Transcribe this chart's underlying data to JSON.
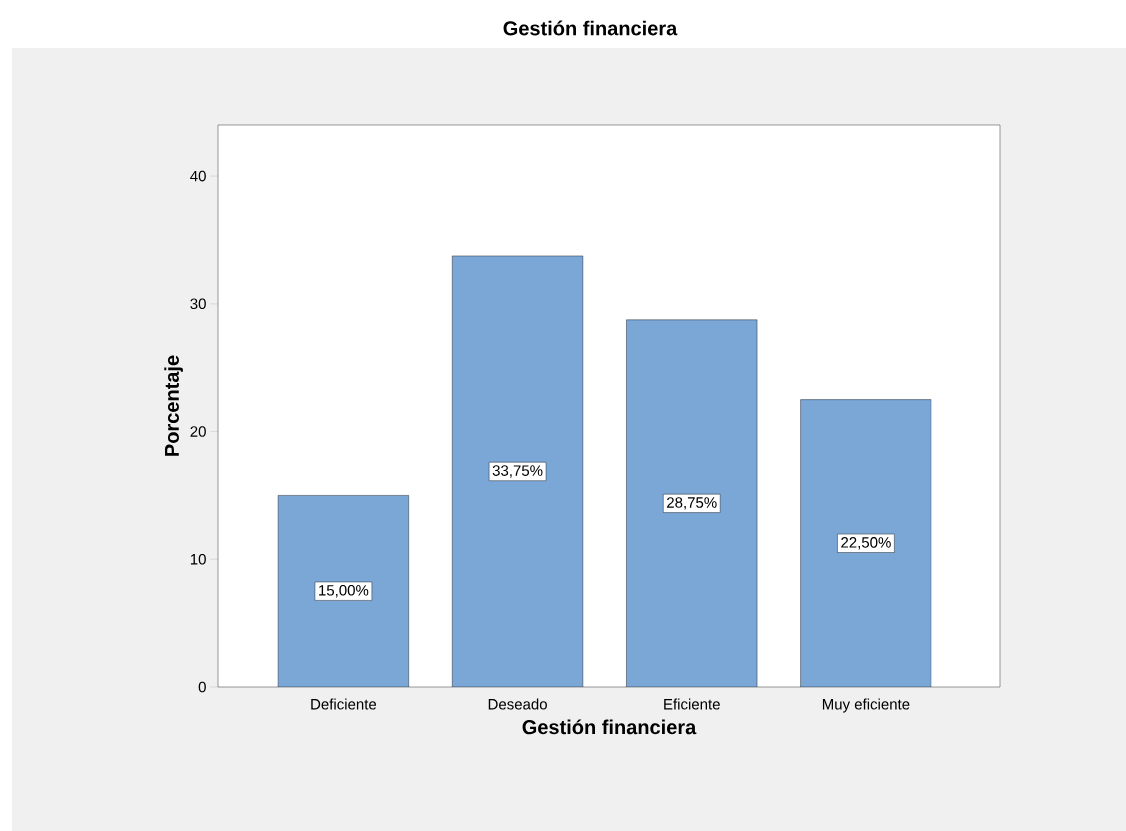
{
  "chart_data": {
    "type": "bar",
    "title": "Gestión financiera",
    "xlabel": "Gestión financiera",
    "ylabel": "Porcentaje",
    "categories": [
      "Deficiente",
      "Deseado",
      "Eficiente",
      "Muy eficiente"
    ],
    "values": [
      15,
      33.75,
      28.75,
      22.5
    ],
    "value_labels": [
      "15,00%",
      "33,75%",
      "28,75%",
      "22,50%"
    ],
    "color": "#7ba7d7",
    "ylim": [
      0,
      44
    ],
    "yticks": [
      0,
      10,
      20,
      30,
      40
    ],
    "grid": false
  }
}
